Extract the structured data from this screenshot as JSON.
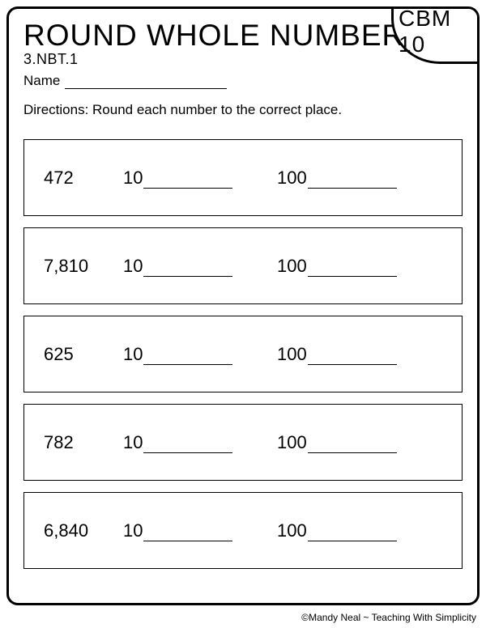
{
  "header": {
    "title": "ROUND WHOLE NUMBERS",
    "badge": "CBM 10",
    "standard": "3.NBT.1",
    "name_label": "Name",
    "directions": "Directions:  Round each number to the correct place."
  },
  "labels": {
    "tens": "10",
    "hundreds": "100"
  },
  "problems": [
    {
      "number": "472"
    },
    {
      "number": "7,810"
    },
    {
      "number": "625"
    },
    {
      "number": "782"
    },
    {
      "number": "6,840"
    }
  ],
  "footer": "©Mandy Neal ~ Teaching With Simplicity",
  "style": {
    "border_color": "#000000",
    "background_color": "#ffffff",
    "title_fontsize": 37,
    "body_fontsize": 17,
    "problem_fontsize": 22,
    "problem_box_height": 95,
    "blank_width": 110,
    "name_line_width": 200
  }
}
